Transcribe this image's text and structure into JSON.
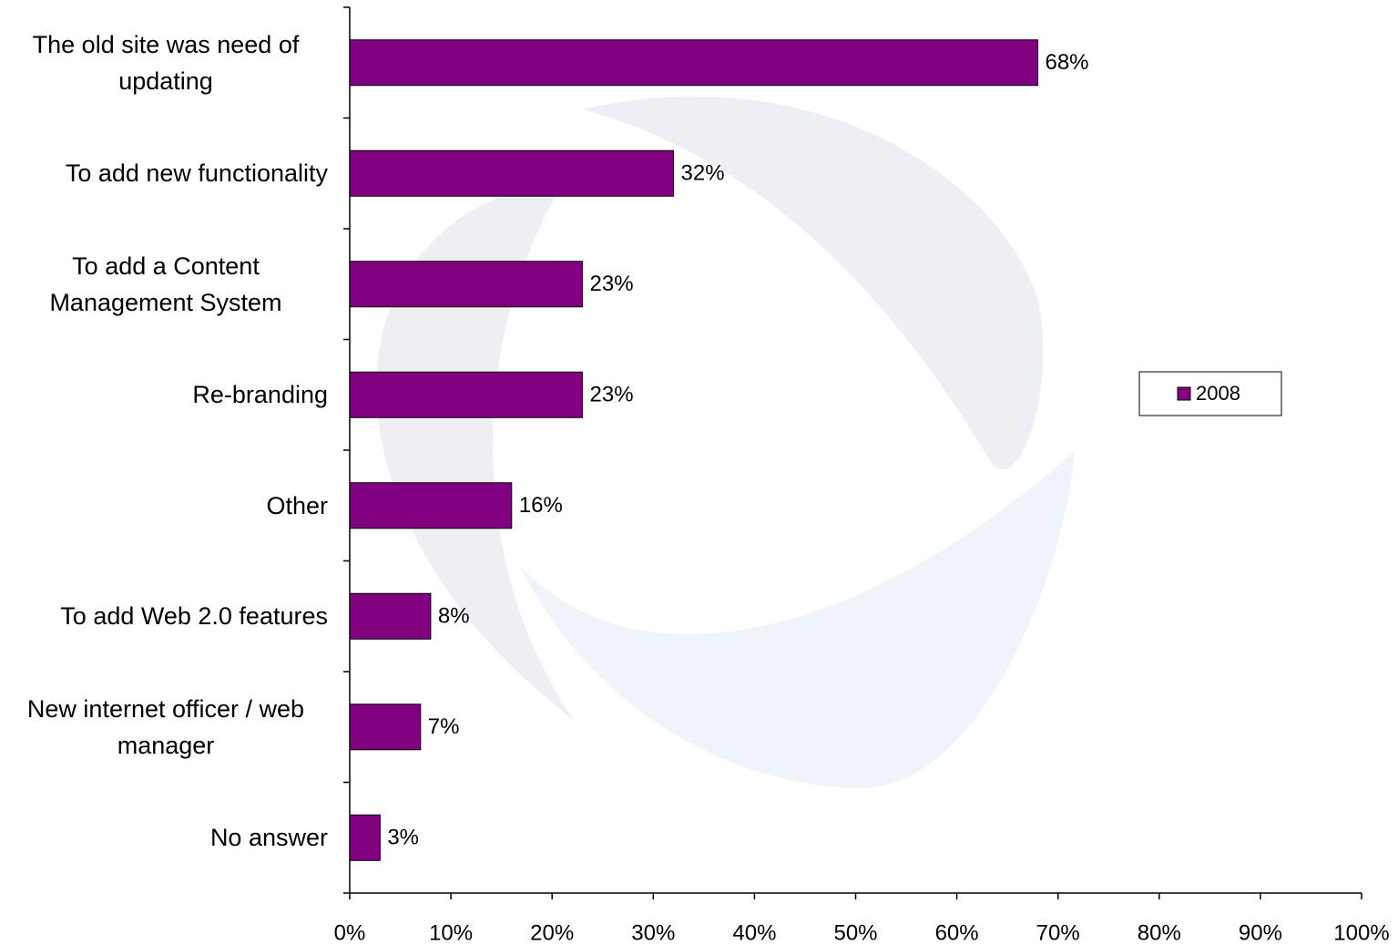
{
  "chart_data": {
    "type": "bar",
    "orientation": "horizontal",
    "categories": [
      "The old site was need of updating",
      "To add new functionality",
      "To add a Content Management System",
      "Re-branding",
      "Other",
      "To add Web 2.0 features",
      "New internet officer / web manager",
      "No answer"
    ],
    "series": [
      {
        "name": "2008",
        "color": "#800080",
        "values": [
          68,
          32,
          23,
          23,
          16,
          8,
          7,
          3
        ],
        "value_labels": [
          "68%",
          "32%",
          "23%",
          "23%",
          "16%",
          "8%",
          "7%",
          "3%"
        ]
      }
    ],
    "xlim": [
      0,
      100
    ],
    "xticks": [
      {
        "value": 0,
        "label": "0%"
      },
      {
        "value": 10,
        "label": "10%"
      },
      {
        "value": 20,
        "label": "20%"
      },
      {
        "value": 30,
        "label": "30%"
      },
      {
        "value": 40,
        "label": "40%"
      },
      {
        "value": 50,
        "label": "50%"
      },
      {
        "value": 60,
        "label": "60%"
      },
      {
        "value": 70,
        "label": "70%"
      },
      {
        "value": 80,
        "label": "80%"
      },
      {
        "value": 90,
        "label": "90%"
      },
      {
        "value": 100,
        "label": "100%"
      }
    ],
    "grid": false,
    "legend": "right"
  }
}
